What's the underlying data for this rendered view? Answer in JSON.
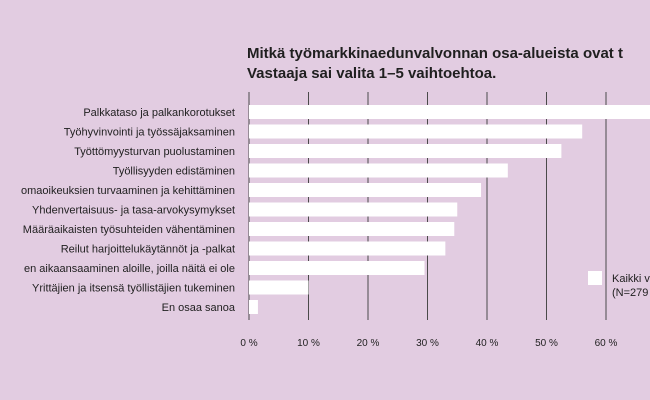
{
  "chart_data": {
    "type": "bar",
    "orientation": "horizontal",
    "title_lines": [
      "Mitkä työmarkkinaedunvalvonnan osa-alueista ovat t",
      "Vastaaja sai valita 1–5 vaihtoehtoa."
    ],
    "categories": [
      "Palkkataso ja palkankorotukset",
      "Työhyvinvointi ja työssäjaksaminen",
      "Työttömyysturvan puolustaminen",
      "Työllisyyden edistäminen",
      "omaoikeuksien turvaaminen ja kehittäminen",
      "Yhdenvertaisuus- ja tasa-arvokysymykset",
      "Määräaikaisten työsuhteiden vähentäminen",
      "Reilut harjoittelukäytännöt ja -palkat",
      "en aikaansaaminen aloille, joilla näitä ei ole",
      "Yrittäjien ja itsensä työllistäjien tukeminen",
      "En osaa sanoa"
    ],
    "series": [
      {
        "name": "Kaikki v (N=279",
        "values": [
          68,
          56,
          52.5,
          43.5,
          39,
          35,
          34.5,
          33,
          29.5,
          10,
          1.5
        ]
      }
    ],
    "x_ticks": [
      "0 %",
      "10 %",
      "20 %",
      "30 %",
      "40 %",
      "50 %",
      "60 %"
    ],
    "xlim": [
      0,
      68
    ],
    "grid": true,
    "legend_lines": [
      "Kaikki v",
      "(N=279"
    ],
    "legend_position": "right",
    "colors": {
      "background": "#e2cce1",
      "bar": "#ffffff",
      "grid": "#4a4a4a",
      "text": "#1f1f1f"
    }
  }
}
